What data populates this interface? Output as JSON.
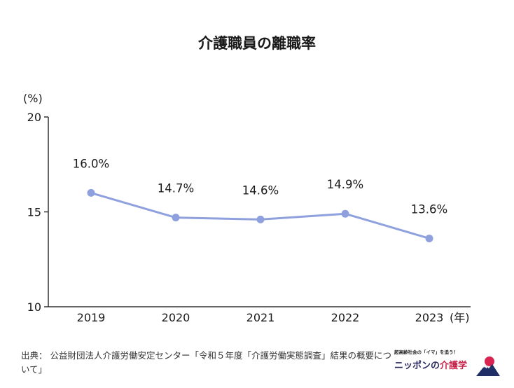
{
  "chart_data": {
    "type": "line",
    "title": "介護職員の離職率",
    "ylabel": "(%)",
    "xlabel": "(年)",
    "categories": [
      "2019",
      "2020",
      "2021",
      "2022",
      "2023"
    ],
    "values": [
      16.0,
      14.7,
      14.6,
      14.9,
      13.6
    ],
    "data_labels": [
      "16.0%",
      "14.7%",
      "14.6%",
      "14.9%",
      "13.6%"
    ],
    "ylim": [
      10,
      20
    ],
    "yticks": [
      10,
      15,
      20
    ],
    "line_color": "#8ea1de",
    "marker_color": "#8ea1de",
    "grid": false
  },
  "source": {
    "text": "出典： 公益財団法人介護労働安定センター「令和５年度「介護労働実態調査」結果の概要について」"
  },
  "logo": {
    "tagline": "超高齢社会の「イマ」を追う！",
    "name_part1": "ニッポンの",
    "name_part2": "介護学"
  }
}
